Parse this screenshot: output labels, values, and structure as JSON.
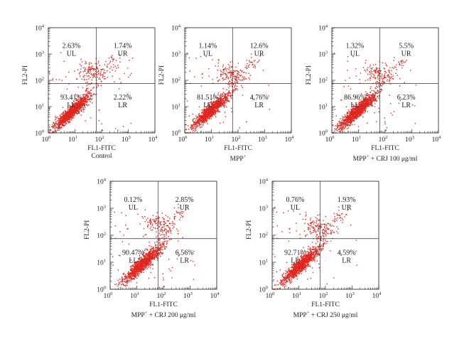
{
  "chart_data": [
    {
      "type": "scatter",
      "xlabel": "FL1-FITC",
      "ylabel": "FL2-PI",
      "caption": "Control",
      "xscale": "log",
      "yscale": "log",
      "xlim": [
        1,
        10000
      ],
      "ylim": [
        1,
        10000
      ],
      "x_ticks": [
        "10",
        "10",
        "10",
        "10",
        "10"
      ],
      "x_tick_exponents": [
        "0",
        "1",
        "2",
        "3",
        "4"
      ],
      "y_ticks": [
        "10",
        "10",
        "10",
        "10",
        "10"
      ],
      "y_tick_exponents": [
        "0",
        "1",
        "2",
        "3",
        "4"
      ],
      "gate_x": 63,
      "gate_y": 75,
      "quadrants": {
        "UL": {
          "label": "UL",
          "percent": "2.63%"
        },
        "UR": {
          "label": "UR",
          "percent": "1.74%"
        },
        "LL": {
          "label": "LL",
          "percent": "93.41%"
        },
        "LR": {
          "label": "LR",
          "percent": "2.22%"
        }
      },
      "color": "#e0261f"
    },
    {
      "type": "scatter",
      "xlabel": "FL1-FITC",
      "ylabel": "FL2-PI",
      "caption": "MPP",
      "caption_sup": "+",
      "caption_rest": "",
      "xscale": "log",
      "yscale": "log",
      "xlim": [
        1,
        10000
      ],
      "ylim": [
        1,
        10000
      ],
      "x_ticks": [
        "10",
        "10",
        "10",
        "10",
        "10"
      ],
      "x_tick_exponents": [
        "0",
        "1",
        "2",
        "3",
        "4"
      ],
      "y_ticks": [
        "10",
        "10",
        "10",
        "10",
        "10"
      ],
      "y_tick_exponents": [
        "0",
        "1",
        "2",
        "3",
        "4"
      ],
      "gate_x": 63,
      "gate_y": 75,
      "quadrants": {
        "UL": {
          "label": "UL",
          "percent": "1.14%"
        },
        "UR": {
          "label": "UR",
          "percent": "12.6%"
        },
        "LL": {
          "label": "LL",
          "percent": "81.51%"
        },
        "LR": {
          "label": "LR",
          "percent": "4.76%"
        }
      },
      "color": "#e0261f"
    },
    {
      "type": "scatter",
      "xlabel": "FL1-FITC",
      "ylabel": "FL2-PI",
      "caption": "MPP",
      "caption_sup": "+",
      "caption_rest": " + CRJ 100 μg/ml",
      "xscale": "log",
      "yscale": "log",
      "xlim": [
        1,
        10000
      ],
      "ylim": [
        1,
        10000
      ],
      "x_ticks": [
        "10",
        "10",
        "10",
        "10",
        "10"
      ],
      "x_tick_exponents": [
        "0",
        "1",
        "2",
        "3",
        "4"
      ],
      "y_ticks": [
        "10",
        "10",
        "10",
        "10",
        "10"
      ],
      "y_tick_exponents": [
        "0",
        "1",
        "2",
        "3",
        "4"
      ],
      "gate_x": 63,
      "gate_y": 75,
      "quadrants": {
        "UL": {
          "label": "UL",
          "percent": "1.32%"
        },
        "UR": {
          "label": "UR",
          "percent": "5.5%"
        },
        "LL": {
          "label": "LL",
          "percent": "86.96%"
        },
        "LR": {
          "label": "LR",
          "percent": "6.23%"
        }
      },
      "color": "#e0261f"
    },
    {
      "type": "scatter",
      "xlabel": "FL1-FITC",
      "ylabel": "FL2-PI",
      "caption": "MPP",
      "caption_sup": "+",
      "caption_rest": " + CRJ 200 μg/ml",
      "xscale": "log",
      "yscale": "log",
      "xlim": [
        1,
        10000
      ],
      "ylim": [
        1,
        10000
      ],
      "x_ticks": [
        "10",
        "10",
        "10",
        "10",
        "10"
      ],
      "x_tick_exponents": [
        "0",
        "1",
        "2",
        "3",
        "4"
      ],
      "y_ticks": [
        "10",
        "10",
        "10",
        "10",
        "10"
      ],
      "y_tick_exponents": [
        "0",
        "1",
        "2",
        "3",
        "4"
      ],
      "gate_x": 63,
      "gate_y": 75,
      "quadrants": {
        "UL": {
          "label": "UL",
          "percent": "0.12%"
        },
        "UR": {
          "label": "UR",
          "percent": "2.85%"
        },
        "LL": {
          "label": "LL",
          "percent": "90.47%"
        },
        "LR": {
          "label": "LR",
          "percent": "6.56%"
        }
      },
      "color": "#e0261f"
    },
    {
      "type": "scatter",
      "xlabel": "FL1-FITC",
      "ylabel": "FL2-PI",
      "caption": "MPP",
      "caption_sup": "+",
      "caption_rest": " + CRJ 250 μg/ml",
      "xscale": "log",
      "yscale": "log",
      "xlim": [
        1,
        10000
      ],
      "ylim": [
        1,
        10000
      ],
      "x_ticks": [
        "10",
        "10",
        "10",
        "10",
        "10"
      ],
      "x_tick_exponents": [
        "0",
        "1",
        "2",
        "3",
        "4"
      ],
      "y_ticks": [
        "10",
        "10",
        "10",
        "10",
        "10"
      ],
      "y_tick_exponents": [
        "0",
        "1",
        "2",
        "3",
        "4"
      ],
      "gate_x": 63,
      "gate_y": 75,
      "quadrants": {
        "UL": {
          "label": "UL",
          "percent": "0.76%"
        },
        "UR": {
          "label": "UR",
          "percent": "1.93%"
        },
        "LL": {
          "label": "LL",
          "percent": "92.71%"
        },
        "LR": {
          "label": "LR",
          "percent": "4.59%"
        }
      },
      "color": "#e0261f"
    }
  ]
}
